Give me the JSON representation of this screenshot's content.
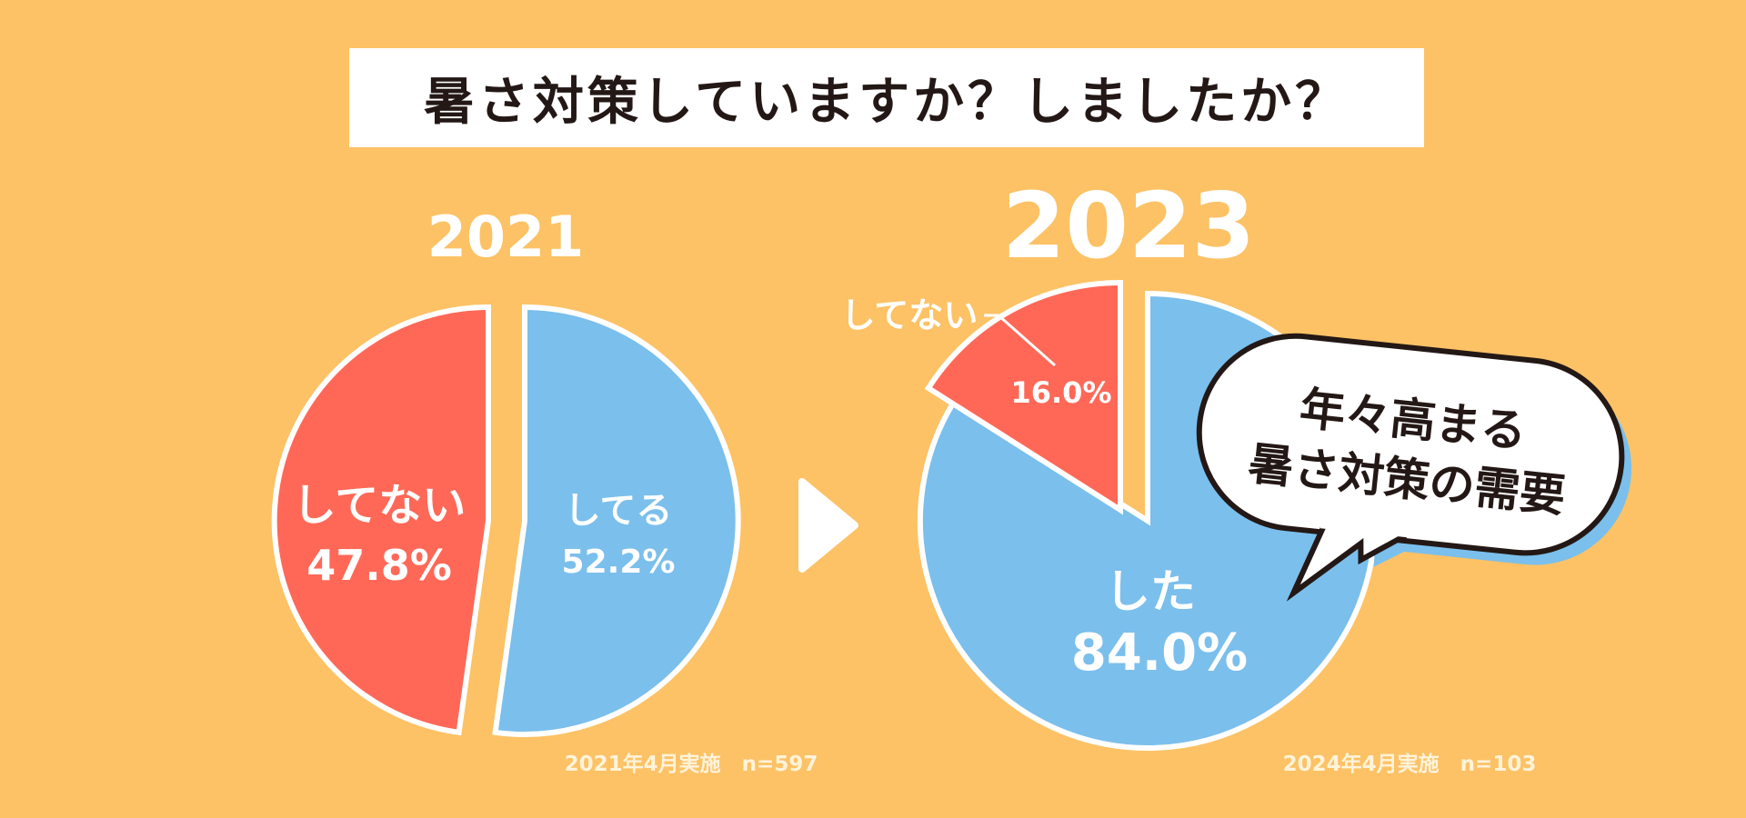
{
  "title": "暑さ対策していますか？しましたか？",
  "colors": {
    "background": "#FCC265",
    "no": "#FF6857",
    "yes": "#7BBFEC",
    "outline": "#FFFFFF",
    "bubble_text": "#231815",
    "bubble_shadow": "#7BBFEC"
  },
  "arrow_icon": "play-triangle-icon",
  "callout": {
    "lines": [
      "年々高まる",
      "暑さ対策の需要"
    ]
  },
  "chart_data": [
    {
      "type": "pie",
      "title": "2021",
      "labels": [
        "してない",
        "してる"
      ],
      "values": [
        47.8,
        52.2
      ],
      "value_labels": [
        "47.8%",
        "52.2%"
      ],
      "note": "2021年4月実施　n=597"
    },
    {
      "type": "pie",
      "title": "2023",
      "labels": [
        "してない",
        "した"
      ],
      "values": [
        16.0,
        84.0
      ],
      "value_labels": [
        "16.0%",
        "84.0%"
      ],
      "note": "2024年4月実施　n=103"
    }
  ]
}
